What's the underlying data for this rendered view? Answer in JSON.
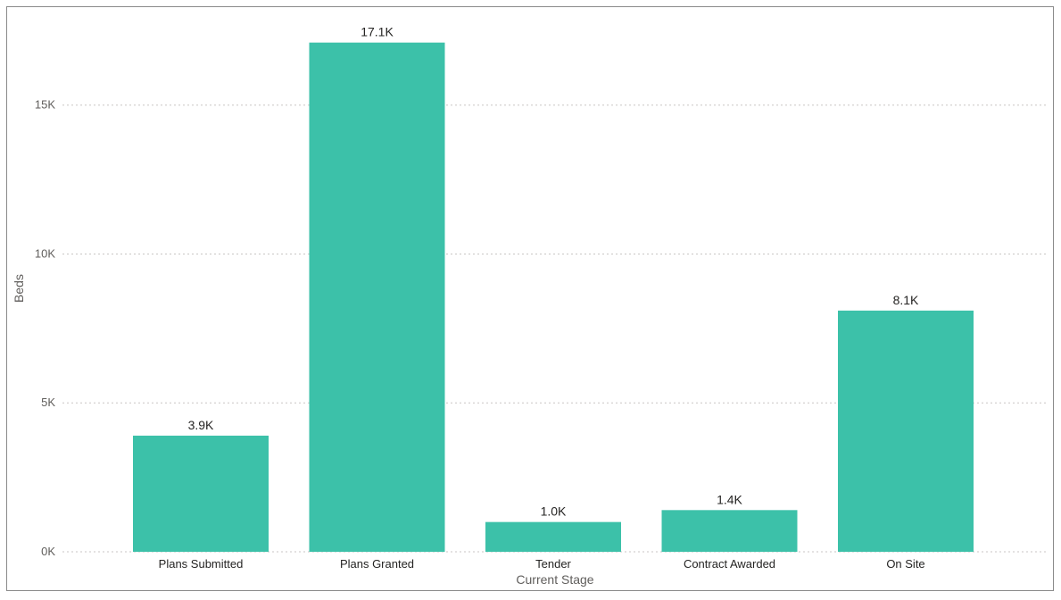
{
  "chart_data": {
    "type": "bar",
    "categories": [
      "Plans Submitted",
      "Plans Granted",
      "Tender",
      "Contract Awarded",
      "On Site"
    ],
    "values": [
      3900,
      17100,
      1000,
      1400,
      8100
    ],
    "data_labels": [
      "3.9K",
      "17.1K",
      "1.0K",
      "1.4K",
      "8.1K"
    ],
    "xlabel": "Current Stage",
    "ylabel": "Beds",
    "ylim": [
      0,
      17600
    ],
    "yticks": [
      0,
      5000,
      10000,
      15000
    ],
    "ytick_labels": [
      "0K",
      "5K",
      "10K",
      "15K"
    ],
    "grid": "horizontal-dotted",
    "legend": "none",
    "bar_color": "#3cc1a9",
    "grid_color": "#c8c6c4"
  }
}
